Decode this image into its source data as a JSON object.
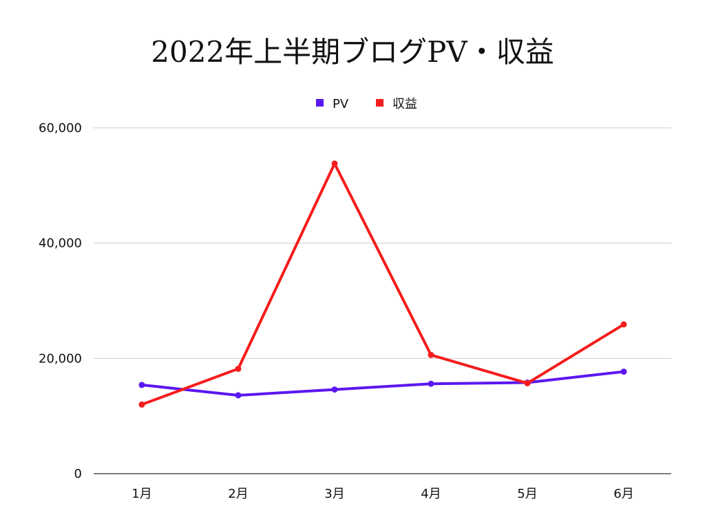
{
  "chart_data": {
    "type": "line",
    "title": "2022年上半期ブログPV・収益",
    "xlabel": "",
    "ylabel": "",
    "categories": [
      "1月",
      "2月",
      "3月",
      "4月",
      "5月",
      "6月"
    ],
    "ylim": [
      0,
      60000
    ],
    "yticks": [
      0,
      20000,
      40000,
      60000
    ],
    "ytick_labels": [
      "0",
      "20,000",
      "40,000",
      "60,000"
    ],
    "grid": true,
    "legend_position": "top-center",
    "series": [
      {
        "name": "PV",
        "color": "#5b17f0",
        "values": [
          15400,
          13600,
          14600,
          15600,
          15800,
          17700
        ]
      },
      {
        "name": "収益",
        "color": "#f51c1c",
        "values": [
          12000,
          18200,
          53800,
          20600,
          15700,
          25900
        ]
      }
    ]
  }
}
